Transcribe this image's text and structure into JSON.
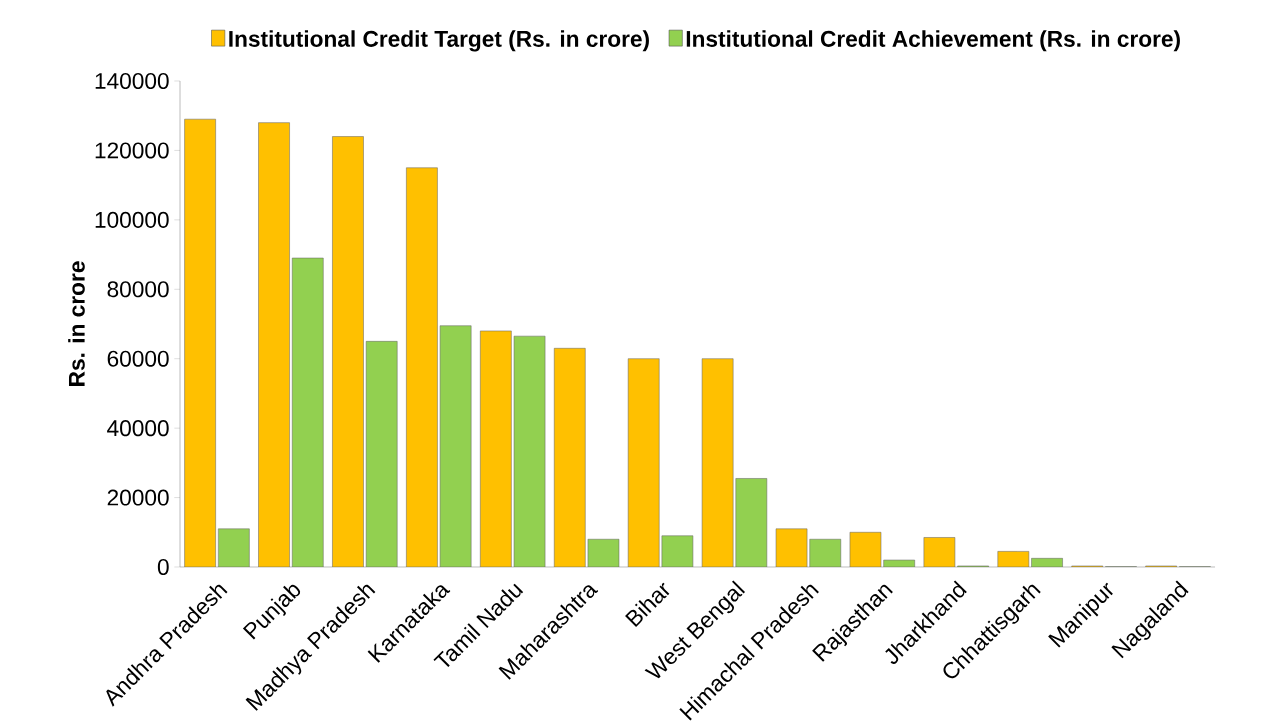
{
  "chart_data": {
    "type": "bar",
    "ylabel": "Rs. in crore",
    "categories": [
      "Andhra Pradesh",
      "Punjab",
      "Madhya Pradesh",
      "Karnataka",
      "Tamil Nadu",
      "Maharashtra",
      "Bihar",
      "West Bengal",
      "Himachal Pradesh",
      "Rajasthan",
      "Jharkhand",
      "Chhattisgarh",
      "Manipur",
      "Nagaland"
    ],
    "series": [
      {
        "name": "Institutional Credit Target (Rs. in crore)",
        "color": "#ffc000",
        "values": [
          129000,
          128000,
          124000,
          115000,
          68000,
          63000,
          60000,
          60000,
          11000,
          10000,
          8500,
          4500,
          300,
          300
        ]
      },
      {
        "name": "Institutional Credit Achievement (Rs. in crore)",
        "color": "#92d050",
        "values": [
          11000,
          89000,
          65000,
          69500,
          66500,
          8000,
          9000,
          25500,
          8000,
          2000,
          300,
          2500,
          100,
          100
        ]
      }
    ],
    "ylim": [
      0,
      140000
    ],
    "yticks": [
      0,
      20000,
      40000,
      60000,
      80000,
      100000,
      120000,
      140000
    ],
    "grid": false,
    "legend": "top"
  }
}
